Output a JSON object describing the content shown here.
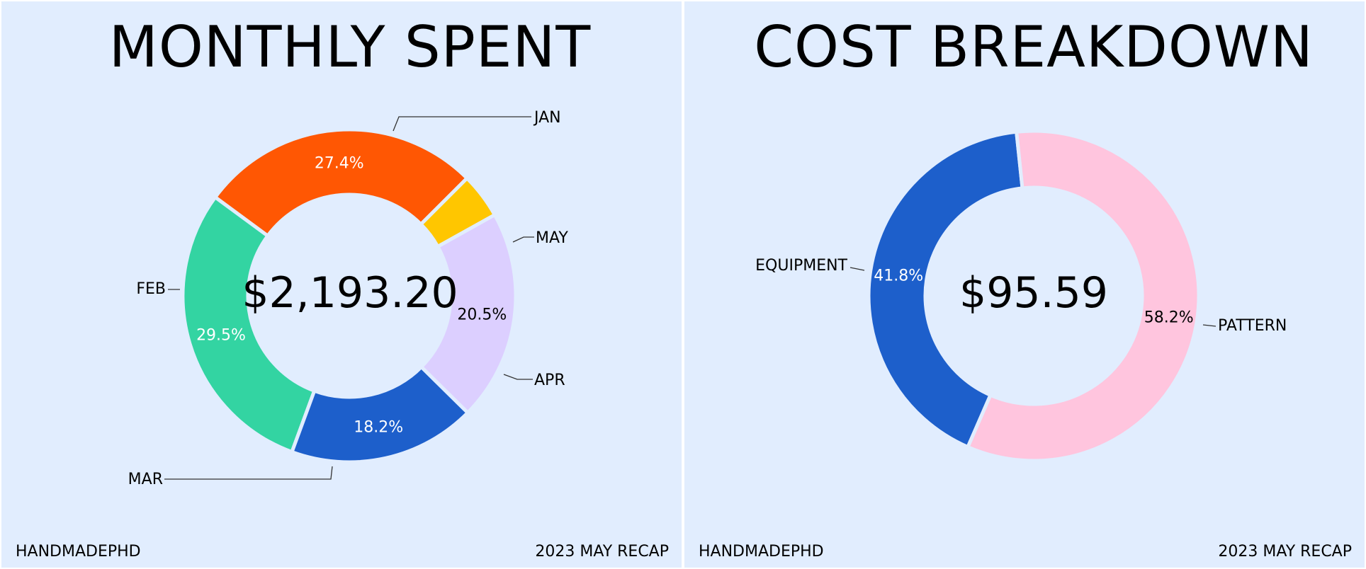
{
  "footer": {
    "brand": "HANDMADEPHD",
    "recap": "2023 MAY RECAP"
  },
  "chart_data": [
    {
      "type": "pie",
      "variant": "donut",
      "title": "MONTHLY SPENT",
      "center_label": "$2,193.20",
      "start_angle_deg": 45,
      "direction": "counterclockwise",
      "slices": [
        {
          "label": "JAN",
          "value": 27.4,
          "pct_label": "27.4%",
          "color": "#ff5703",
          "text_color": "#ffffff"
        },
        {
          "label": "FEB",
          "value": 29.5,
          "pct_label": "29.5%",
          "color": "#33d4a2",
          "text_color": "#ffffff"
        },
        {
          "label": "MAR",
          "value": 18.2,
          "pct_label": "18.2%",
          "color": "#1d5fcb",
          "text_color": "#ffffff"
        },
        {
          "label": "APR",
          "value": 20.5,
          "pct_label": "20.5%",
          "color": "#dccfff",
          "text_color": "#000000"
        },
        {
          "label": "MAY",
          "value": 4.4,
          "pct_label": "",
          "color": "#ffc600",
          "text_color": "#000000"
        }
      ]
    },
    {
      "type": "pie",
      "variant": "donut",
      "title": "COST BREAKDOWN",
      "center_label": "$95.59",
      "start_angle_deg": 96,
      "direction": "counterclockwise",
      "slices": [
        {
          "label": "EQUIPMENT",
          "value": 41.8,
          "pct_label": "41.8%",
          "color": "#1d5fcb",
          "text_color": "#ffffff"
        },
        {
          "label": "PATTERN",
          "value": 58.2,
          "pct_label": "58.2%",
          "color": "#ffc5de",
          "text_color": "#000000"
        }
      ]
    }
  ]
}
